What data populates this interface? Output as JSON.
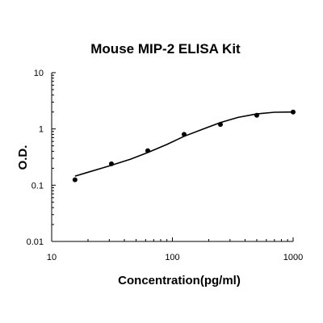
{
  "chart_data": {
    "type": "scatter",
    "title": "Mouse MIP-2 ELISA Kit",
    "xlabel": "Concentration(pg/ml)",
    "ylabel": "O.D.",
    "x_scale": "log",
    "y_scale": "log",
    "xlim": [
      10,
      1000
    ],
    "ylim": [
      0.01,
      10
    ],
    "x_ticks": [
      "10",
      "100",
      "1000"
    ],
    "y_ticks": [
      "10",
      "1",
      "0.1",
      "0.01"
    ],
    "grid": false,
    "legend": "none",
    "series": [
      {
        "x": [
          15.6,
          31.25,
          62.5,
          125,
          250,
          500,
          1000
        ],
        "y": [
          0.125,
          0.24,
          0.41,
          0.8,
          1.2,
          1.75,
          2.0
        ]
      }
    ],
    "fit_curve": {
      "x": [
        15.6,
        20,
        30,
        45,
        62.5,
        90,
        125,
        180,
        250,
        350,
        500,
        700,
        1000
      ],
      "y": [
        0.145,
        0.17,
        0.22,
        0.29,
        0.38,
        0.53,
        0.74,
        1.0,
        1.3,
        1.6,
        1.85,
        1.98,
        2.0
      ]
    }
  }
}
